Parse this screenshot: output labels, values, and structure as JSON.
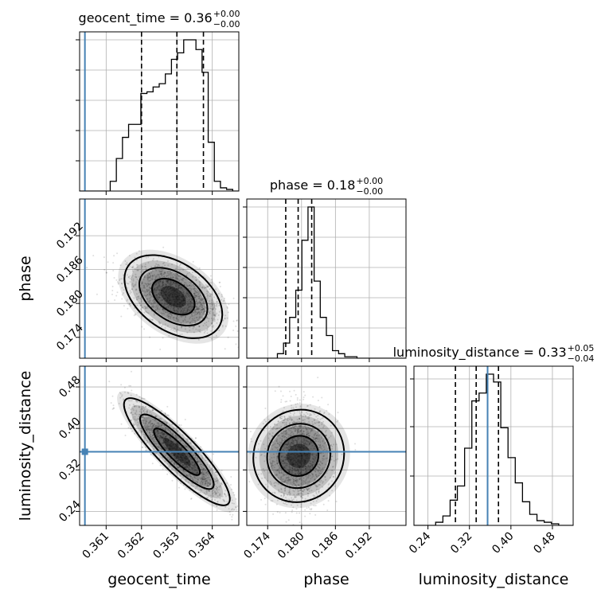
{
  "chart_data": {
    "type": "corner",
    "parameters": [
      {
        "name": "geocent_time",
        "label": "geocent_time",
        "range": [
          0.36025,
          0.36475
        ],
        "ticks": [
          0.361,
          0.362,
          0.363,
          0.364
        ],
        "tick_labels": [
          "0.361",
          "0.362",
          "0.363",
          "0.364"
        ],
        "injection": 0.3604,
        "quantiles": [
          0.362,
          0.363,
          0.36375
        ],
        "title": {
          "main": "geocent_time = 0.36",
          "plus": "+0.00",
          "minus": "−0.00"
        }
      },
      {
        "name": "phase",
        "label": "phase",
        "range": [
          0.1703,
          0.1985
        ],
        "ticks": [
          0.174,
          0.18,
          0.186,
          0.192
        ],
        "tick_labels": [
          "0.174",
          "0.180",
          "0.186",
          "0.192"
        ],
        "injection": null,
        "quantiles": [
          0.1772,
          0.1794,
          0.1818
        ],
        "title": {
          "main": "phase = 0.18",
          "plus": "+0.00",
          "minus": "−0.00"
        }
      },
      {
        "name": "luminosity_distance",
        "label": "luminosity_distance",
        "range": [
          0.213,
          0.52
        ],
        "ticks": [
          0.24,
          0.32,
          0.4,
          0.48
        ],
        "tick_labels": [
          "0.24",
          "0.32",
          "0.40",
          "0.48"
        ],
        "injection": 0.355,
        "quantiles": [
          0.293,
          0.333,
          0.376
        ],
        "title": {
          "main": "luminosity_distance = 0.33",
          "plus": "+0.05",
          "minus": "−0.04"
        }
      }
    ],
    "marginals": [
      [
        0,
        0,
        0,
        0,
        0,
        0.06,
        0.2,
        0.33,
        0.41,
        0.41,
        0.6,
        0.61,
        0.64,
        0.66,
        0.72,
        0.81,
        0.85,
        0.93,
        0.93,
        0.87,
        0.73,
        0.3,
        0.06,
        0.02,
        0.01,
        0
      ],
      [
        0,
        0,
        0,
        0,
        0,
        0.03,
        0.1,
        0.27,
        0.45,
        0.78,
        1.0,
        0.51,
        0.27,
        0.15,
        0.05,
        0.03,
        0.01,
        0.01,
        0,
        0,
        0,
        0,
        0,
        0,
        0,
        0
      ],
      [
        0,
        0,
        0,
        0.02,
        0.06,
        0.16,
        0.25,
        0.49,
        0.79,
        0.84,
        0.96,
        0.91,
        0.62,
        0.43,
        0.27,
        0.15,
        0.07,
        0.03,
        0.02,
        0.01,
        0,
        0
      ]
    ],
    "marginal_grid": [
      {
        "y_frac": [
          0.19,
          0.38,
          0.57,
          0.76,
          0.95
        ]
      },
      {
        "y_frac": [
          0.19,
          0.38,
          0.57,
          0.76,
          0.95
        ]
      },
      {
        "y_frac": [
          0.31,
          0.62,
          0.92
        ]
      }
    ],
    "pairs": [
      {
        "x": "geocent_time",
        "y": "phase",
        "mean": [
          0.3629,
          0.1812
        ],
        "std": [
          0.00065,
          0.0028
        ],
        "corr": -0.45
      },
      {
        "x": "geocent_time",
        "y": "luminosity_distance",
        "mean": [
          0.363,
          0.355
        ],
        "std": [
          0.00065,
          0.045
        ],
        "corr": -0.88
      },
      {
        "x": "phase",
        "y": "luminosity_distance",
        "mean": [
          0.1795,
          0.347
        ],
        "std": [
          0.0028,
          0.045
        ],
        "corr": 0.05
      }
    ],
    "injection_color": "#4682b4",
    "line_color": "#000000",
    "grid": true
  }
}
